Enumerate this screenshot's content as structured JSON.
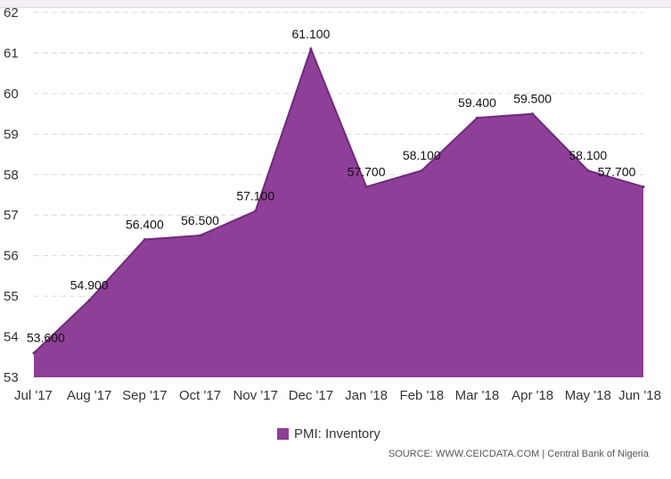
{
  "chart_data": {
    "type": "area",
    "categories": [
      "Jul '17",
      "Aug '17",
      "Sep '17",
      "Oct '17",
      "Nov '17",
      "Dec '17",
      "Jan '18",
      "Feb '18",
      "Mar '18",
      "Apr '18",
      "May '18",
      "Jun '18"
    ],
    "series": [
      {
        "name": "PMI: Inventory",
        "values": [
          53.6,
          54.9,
          56.4,
          56.5,
          57.1,
          61.1,
          57.7,
          58.1,
          59.4,
          59.5,
          58.1,
          57.7
        ],
        "labels": [
          "53.600",
          "54.900",
          "56.400",
          "56.500",
          "57.100",
          "61.100",
          "57.700",
          "58.100",
          "59.400",
          "59.500",
          "58.100",
          "57.700"
        ]
      }
    ],
    "ylim": [
      53,
      62
    ],
    "yticks": [
      "53",
      "54",
      "55",
      "56",
      "57",
      "58",
      "59",
      "60",
      "61",
      "62"
    ],
    "grid": true,
    "legend_position": "bottom-center",
    "colors": {
      "fill": "#8e3f97",
      "line": "#6f2a7a"
    },
    "source": "SOURCE: WWW.CEICDATA.COM | Central Bank of Nigeria"
  }
}
